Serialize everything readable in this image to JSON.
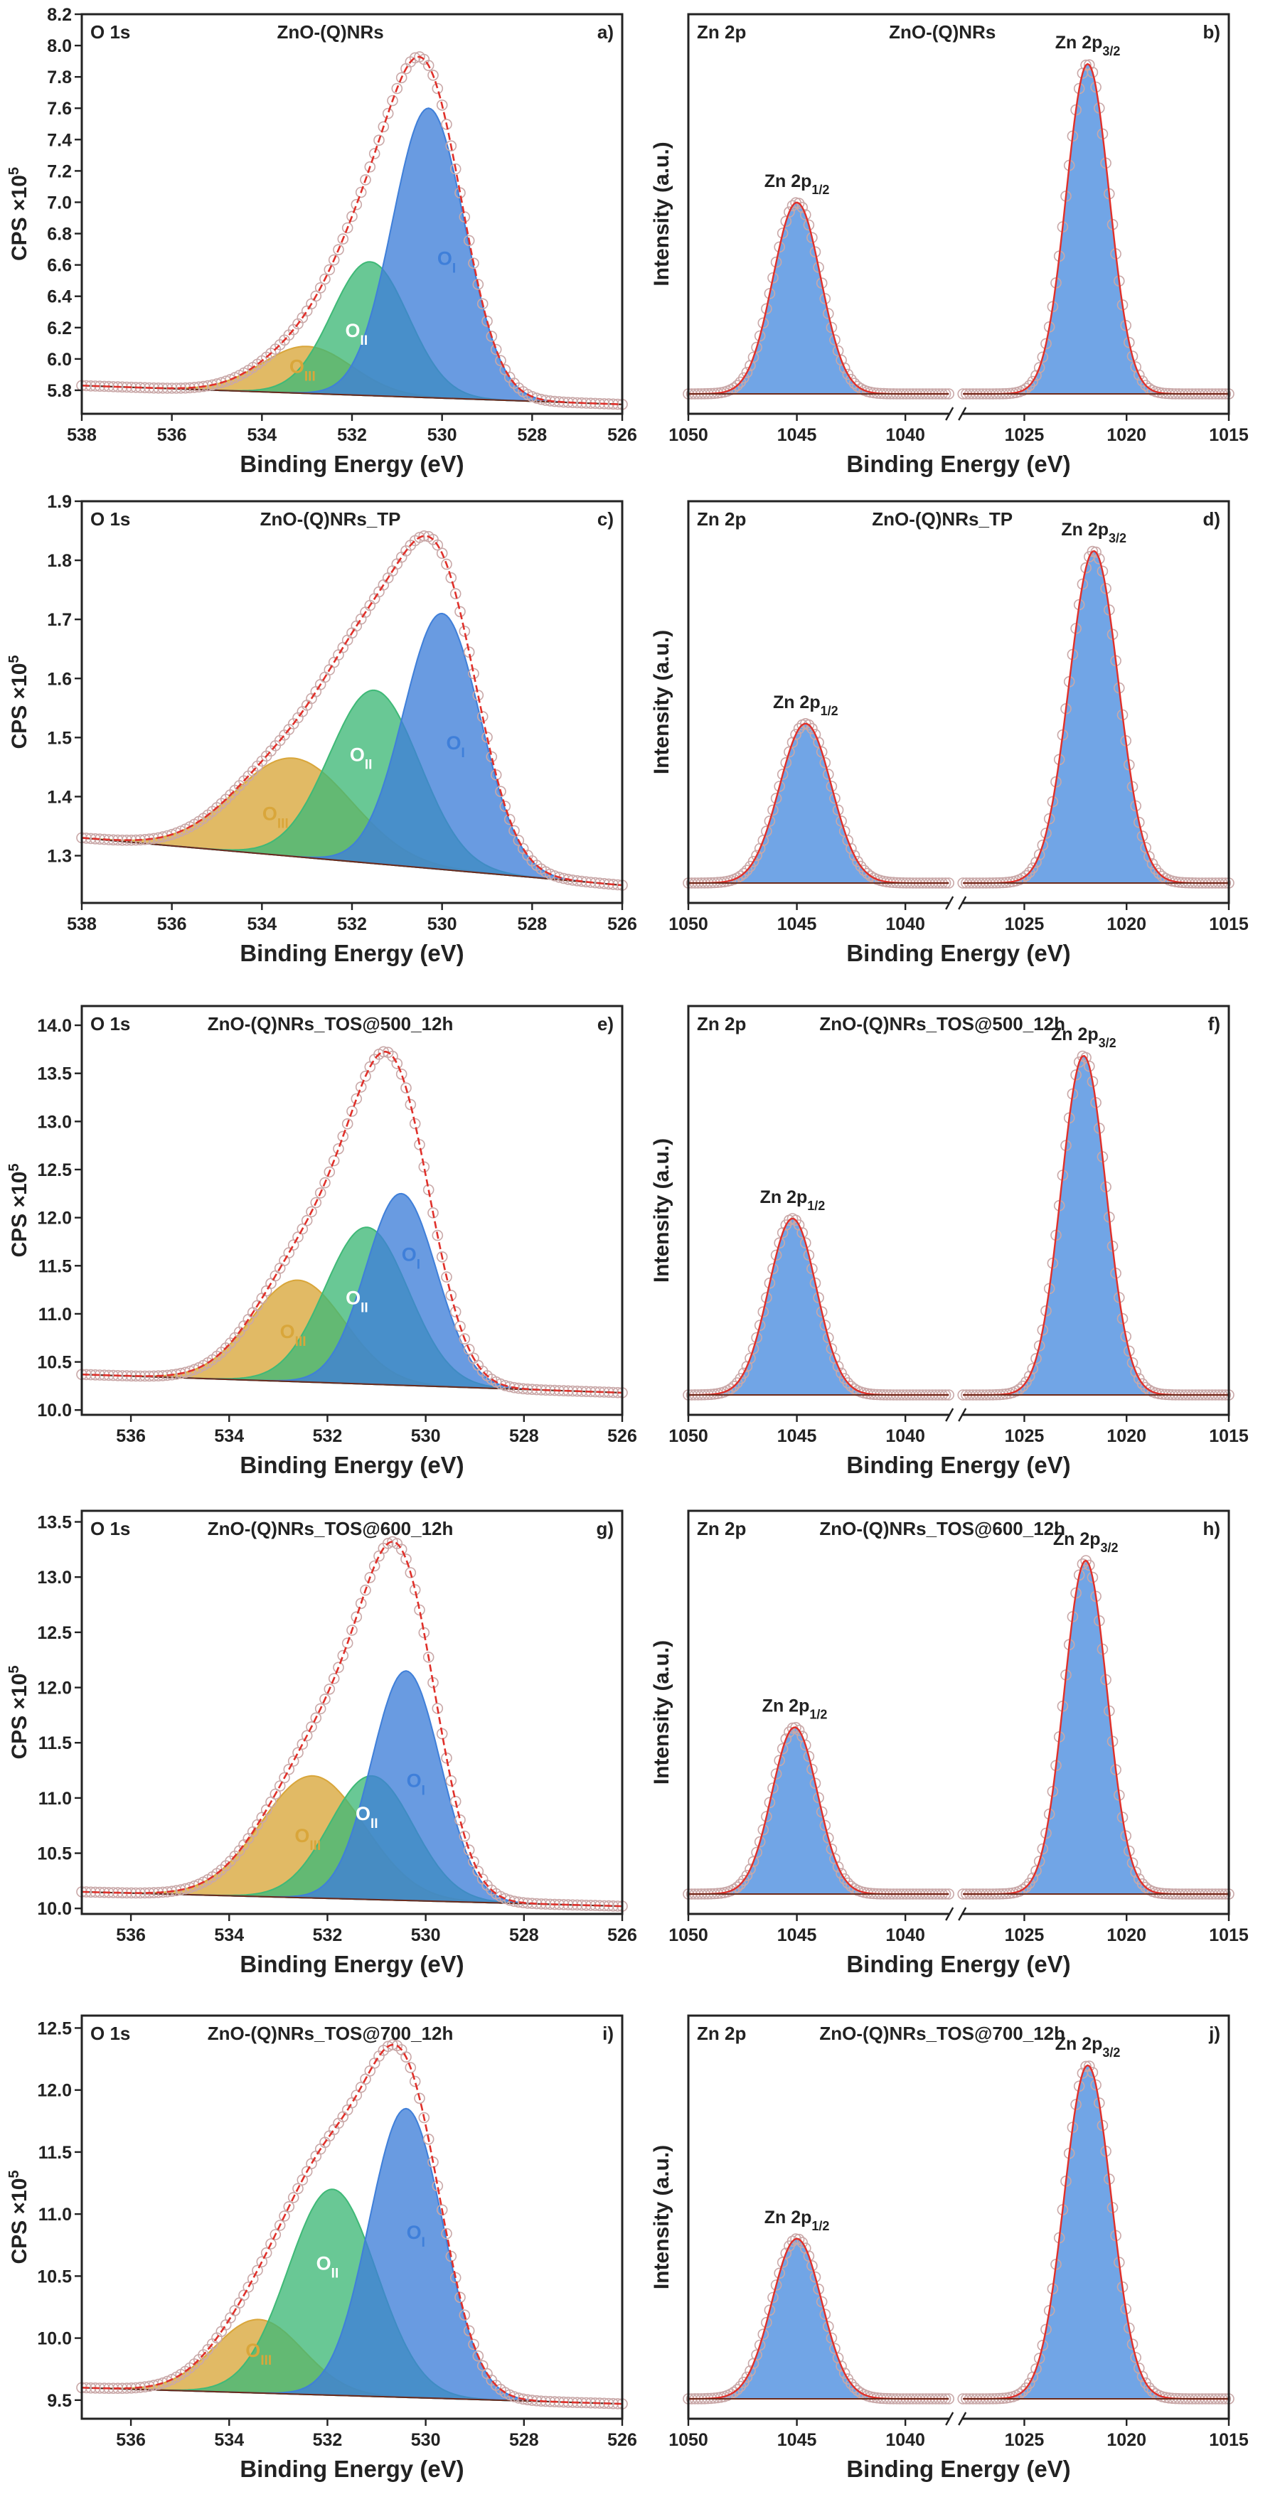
{
  "figure": {
    "colors": {
      "oI": "#3f7fd9",
      "oII": "#3fb977",
      "oIII": "#d9a63a",
      "zn": "#4d8fe0",
      "fit": "#e0302a",
      "background": "#6b2a1a",
      "markers": "#c9a8a8"
    }
  },
  "panels": [
    {
      "id": "a",
      "type": "O1s",
      "corner_label": "O 1s",
      "sample": "ZnO-(Q)NRs",
      "letter": "a)",
      "xlabel": "Binding Energy (eV)",
      "ylabel": "CPS ×10",
      "ylabel_exp": "5",
      "xlim": [
        538,
        526
      ],
      "ylim": [
        5.65,
        8.2
      ],
      "xticks": [
        538,
        536,
        534,
        532,
        530,
        528,
        526
      ],
      "xtick_labels": [
        "538",
        "536",
        "534",
        "532",
        "530",
        "528",
        "526"
      ],
      "yticks": [
        5.8,
        6.0,
        6.2,
        6.4,
        6.6,
        6.8,
        7.0,
        7.2,
        7.4,
        7.6,
        7.8,
        8.0,
        8.2
      ],
      "ytick_labels": [
        "5.8",
        "6.0",
        "6.2",
        "6.4",
        "6.6",
        "6.8",
        "7.0",
        "7.2",
        "7.4",
        "7.6",
        "7.8",
        "8.0",
        "8.2"
      ],
      "baseline": {
        "left": 5.83,
        "right": 5.71
      },
      "components": [
        {
          "name": "O_I",
          "label": "O",
          "sub": "I",
          "center": 530.3,
          "height": 7.6,
          "width": 0.8,
          "color": "oI",
          "label_at": [
            529.9,
            6.6
          ],
          "label_color": "oI"
        },
        {
          "name": "O_II",
          "label": "O",
          "sub": "II",
          "center": 531.6,
          "height": 6.62,
          "width": 0.85,
          "color": "oII",
          "label_at": [
            531.9,
            6.14
          ],
          "label_color": "#ffffff"
        },
        {
          "name": "O_III",
          "label": "O",
          "sub": "III",
          "center": 533.0,
          "height": 6.08,
          "width": 1.0,
          "color": "oIII",
          "label_at": [
            533.1,
            5.91
          ],
          "label_color": "oIII"
        }
      ]
    },
    {
      "id": "b",
      "type": "Zn2p",
      "corner_label": "Zn 2p",
      "sample": "ZnO-(Q)NRs",
      "letter": "b)",
      "xlabel": "Binding Energy (eV)",
      "ylabel": "Intensity (a.u.)",
      "xticks": [
        1050,
        1045,
        1040,
        1025,
        1020,
        1015
      ],
      "xtick_labels": [
        "1050",
        "1045",
        "1040",
        "1025",
        "1020",
        "1015"
      ],
      "left_range": [
        1050,
        1038
      ],
      "right_range": [
        1028,
        1015
      ],
      "peaks": [
        {
          "label": "Zn 2p",
          "sub": "1/2",
          "center": 1045.0,
          "rel_height": 0.58,
          "width": 1.1
        },
        {
          "label": "Zn 2p",
          "sub": "3/2",
          "center": 1021.9,
          "rel_height": 1.0,
          "width": 1.05
        }
      ]
    },
    {
      "id": "c",
      "type": "O1s",
      "corner_label": "O 1s",
      "sample": "ZnO-(Q)NRs_TP",
      "letter": "c)",
      "xlabel": "Binding Energy (eV)",
      "ylabel": "CPS ×10",
      "ylabel_exp": "5",
      "xlim": [
        538,
        526
      ],
      "ylim": [
        1.22,
        1.9
      ],
      "xticks": [
        538,
        536,
        534,
        532,
        530,
        528,
        526
      ],
      "xtick_labels": [
        "538",
        "536",
        "534",
        "532",
        "530",
        "528",
        "526"
      ],
      "yticks": [
        1.3,
        1.4,
        1.5,
        1.6,
        1.7,
        1.8,
        1.9
      ],
      "ytick_labels": [
        "1.3",
        "1.4",
        "1.5",
        "1.6",
        "1.7",
        "1.8",
        "1.9"
      ],
      "baseline": {
        "left": 1.33,
        "right": 1.25
      },
      "components": [
        {
          "name": "O_I",
          "label": "O",
          "sub": "I",
          "center": 530.0,
          "height": 1.71,
          "width": 0.85,
          "color": "oI",
          "label_at": [
            529.7,
            1.48
          ],
          "label_color": "oI"
        },
        {
          "name": "O_II",
          "label": "O",
          "sub": "II",
          "center": 531.5,
          "height": 1.58,
          "width": 1.0,
          "color": "oII",
          "label_at": [
            531.8,
            1.46
          ],
          "label_color": "#ffffff"
        },
        {
          "name": "O_III",
          "label": "O",
          "sub": "III",
          "center": 533.3,
          "height": 1.465,
          "width": 1.3,
          "color": "oIII",
          "label_at": [
            533.7,
            1.36
          ],
          "label_color": "oIII"
        }
      ]
    },
    {
      "id": "d",
      "type": "Zn2p",
      "corner_label": "Zn 2p",
      "sample": "ZnO-(Q)NRs_TP",
      "letter": "d)",
      "xlabel": "Binding Energy (eV)",
      "ylabel": "Intensity (a.u.)",
      "xticks": [
        1050,
        1045,
        1040,
        1025,
        1020,
        1015
      ],
      "xtick_labels": [
        "1050",
        "1045",
        "1040",
        "1025",
        "1020",
        "1015"
      ],
      "left_range": [
        1050,
        1038
      ],
      "right_range": [
        1028,
        1015
      ],
      "peaks": [
        {
          "label": "Zn 2p",
          "sub": "1/2",
          "center": 1044.6,
          "rel_height": 0.48,
          "width": 1.2
        },
        {
          "label": "Zn 2p",
          "sub": "3/2",
          "center": 1021.6,
          "rel_height": 1.0,
          "width": 1.2
        }
      ]
    },
    {
      "id": "e",
      "type": "O1s",
      "corner_label": "O 1s",
      "sample": "ZnO-(Q)NRs_TOS@500_12h",
      "letter": "e)",
      "xlabel": "Binding Energy (eV)",
      "ylabel": "CPS ×10",
      "ylabel_exp": "5",
      "xlim": [
        537,
        526
      ],
      "ylim": [
        9.95,
        14.2
      ],
      "xticks": [
        536,
        534,
        532,
        530,
        528,
        526
      ],
      "xtick_labels": [
        "536",
        "534",
        "532",
        "530",
        "528",
        "526"
      ],
      "yticks": [
        10.0,
        10.5,
        11.0,
        11.5,
        12.0,
        12.5,
        13.0,
        13.5,
        14.0
      ],
      "ytick_labels": [
        "10.0",
        "10.5",
        "11.0",
        "11.5",
        "12.0",
        "12.5",
        "13.0",
        "13.5",
        "14.0"
      ],
      "baseline": {
        "left": 10.37,
        "right": 10.18
      },
      "components": [
        {
          "name": "O_I",
          "label": "O",
          "sub": "I",
          "center": 530.5,
          "height": 12.25,
          "width": 0.72,
          "color": "oI",
          "label_at": [
            530.3,
            11.55
          ],
          "label_color": "oI"
        },
        {
          "name": "O_II",
          "label": "O",
          "sub": "II",
          "center": 531.2,
          "height": 11.9,
          "width": 0.85,
          "color": "oII",
          "label_at": [
            531.4,
            11.1
          ],
          "label_color": "#ffffff"
        },
        {
          "name": "O_III",
          "label": "O",
          "sub": "III",
          "center": 532.6,
          "height": 11.35,
          "width": 0.95,
          "color": "oIII",
          "label_at": [
            532.7,
            10.75
          ],
          "label_color": "oIII"
        }
      ]
    },
    {
      "id": "f",
      "type": "Zn2p",
      "corner_label": "Zn 2p",
      "sample": "ZnO-(Q)NRs_TOS@500_12h",
      "letter": "f)",
      "xlabel": "Binding Energy (eV)",
      "ylabel": "Intensity (a.u.)",
      "xticks": [
        1050,
        1045,
        1040,
        1025,
        1020,
        1015
      ],
      "xtick_labels": [
        "1050",
        "1045",
        "1040",
        "1025",
        "1020",
        "1015"
      ],
      "left_range": [
        1050,
        1038
      ],
      "right_range": [
        1028,
        1015
      ],
      "peaks": [
        {
          "label": "Zn 2p",
          "sub": "1/2",
          "center": 1045.2,
          "rel_height": 0.52,
          "width": 1.1
        },
        {
          "label": "Zn 2p",
          "sub": "3/2",
          "center": 1022.1,
          "rel_height": 1.0,
          "width": 1.1
        }
      ]
    },
    {
      "id": "g",
      "type": "O1s",
      "corner_label": "O 1s",
      "sample": "ZnO-(Q)NRs_TOS@600_12h",
      "letter": "g)",
      "xlabel": "Binding Energy (eV)",
      "ylabel": "CPS ×10",
      "ylabel_exp": "5",
      "xlim": [
        537,
        526
      ],
      "ylim": [
        9.95,
        13.6
      ],
      "xticks": [
        536,
        534,
        532,
        530,
        528,
        526
      ],
      "xtick_labels": [
        "536",
        "534",
        "532",
        "530",
        "528",
        "526"
      ],
      "yticks": [
        10.0,
        10.5,
        11.0,
        11.5,
        12.0,
        12.5,
        13.0,
        13.5
      ],
      "ytick_labels": [
        "10.0",
        "10.5",
        "11.0",
        "11.5",
        "12.0",
        "12.5",
        "13.0",
        "13.5"
      ],
      "baseline": {
        "left": 10.15,
        "right": 10.02
      },
      "components": [
        {
          "name": "O_I",
          "label": "O",
          "sub": "I",
          "center": 530.4,
          "height": 12.15,
          "width": 0.7,
          "color": "oI",
          "label_at": [
            530.2,
            11.1
          ],
          "label_color": "oI"
        },
        {
          "name": "O_II",
          "label": "O",
          "sub": "II",
          "center": 531.1,
          "height": 11.2,
          "width": 0.85,
          "color": "oII",
          "label_at": [
            531.2,
            10.8
          ],
          "label_color": "#ffffff"
        },
        {
          "name": "O_III",
          "label": "O",
          "sub": "III",
          "center": 532.3,
          "height": 11.2,
          "width": 1.05,
          "color": "oIII",
          "label_at": [
            532.4,
            10.6
          ],
          "label_color": "oIII"
        }
      ]
    },
    {
      "id": "h",
      "type": "Zn2p",
      "corner_label": "Zn 2p",
      "sample": "ZnO-(Q)NRs_TOS@600_12h",
      "letter": "h)",
      "xlabel": "Binding Energy (eV)",
      "ylabel": "Intensity (a.u.)",
      "xticks": [
        1050,
        1045,
        1040,
        1025,
        1020,
        1015
      ],
      "xtick_labels": [
        "1050",
        "1045",
        "1040",
        "1025",
        "1020",
        "1015"
      ],
      "left_range": [
        1050,
        1038
      ],
      "right_range": [
        1028,
        1015
      ],
      "peaks": [
        {
          "label": "Zn 2p",
          "sub": "1/2",
          "center": 1045.1,
          "rel_height": 0.5,
          "width": 1.05
        },
        {
          "label": "Zn 2p",
          "sub": "3/2",
          "center": 1022.0,
          "rel_height": 1.0,
          "width": 1.05
        }
      ]
    },
    {
      "id": "i",
      "type": "O1s",
      "corner_label": "O 1s",
      "sample": "ZnO-(Q)NRs_TOS@700_12h",
      "letter": "i)",
      "xlabel": "Binding Energy (eV)",
      "ylabel": "CPS ×10",
      "ylabel_exp": "5",
      "xlim": [
        537,
        526
      ],
      "ylim": [
        9.35,
        12.6
      ],
      "xticks": [
        536,
        534,
        532,
        530,
        528,
        526
      ],
      "xtick_labels": [
        "536",
        "534",
        "532",
        "530",
        "528",
        "526"
      ],
      "yticks": [
        9.5,
        10.0,
        10.5,
        11.0,
        11.5,
        12.0,
        12.5
      ],
      "ytick_labels": [
        "9.5",
        "10.0",
        "10.5",
        "11.0",
        "11.5",
        "12.0",
        "12.5"
      ],
      "baseline": {
        "left": 9.6,
        "right": 9.47
      },
      "components": [
        {
          "name": "O_I",
          "label": "O",
          "sub": "I",
          "center": 530.4,
          "height": 11.85,
          "width": 0.75,
          "color": "oI",
          "label_at": [
            530.2,
            10.8
          ],
          "label_color": "oI"
        },
        {
          "name": "O_II",
          "label": "O",
          "sub": "II",
          "center": 531.9,
          "height": 11.2,
          "width": 0.9,
          "color": "oII",
          "label_at": [
            532.0,
            10.55
          ],
          "label_color": "#ffffff"
        },
        {
          "name": "O_III",
          "label": "O",
          "sub": "III",
          "center": 533.4,
          "height": 10.15,
          "width": 0.9,
          "color": "oIII",
          "label_at": [
            533.4,
            9.85
          ],
          "label_color": "oIII"
        }
      ]
    },
    {
      "id": "j",
      "type": "Zn2p",
      "corner_label": "Zn 2p",
      "sample": "ZnO-(Q)NRs_TOS@700_12h",
      "letter": "j)",
      "xlabel": "Binding Energy (eV)",
      "ylabel": "Intensity (a.u.)",
      "xticks": [
        1050,
        1045,
        1040,
        1025,
        1020,
        1015
      ],
      "xtick_labels": [
        "1050",
        "1045",
        "1040",
        "1025",
        "1020",
        "1015"
      ],
      "left_range": [
        1050,
        1038
      ],
      "right_range": [
        1028,
        1015
      ],
      "peaks": [
        {
          "label": "Zn 2p",
          "sub": "1/2",
          "center": 1045.0,
          "rel_height": 0.48,
          "width": 1.15
        },
        {
          "label": "Zn 2p",
          "sub": "3/2",
          "center": 1021.9,
          "rel_height": 1.0,
          "width": 1.15
        }
      ]
    }
  ],
  "chart_data": [
    {
      "panel": "a",
      "type": "line",
      "title": "ZnO-(Q)NRs – O 1s",
      "xlabel": "Binding Energy (eV)",
      "ylabel": "CPS ×10^5",
      "xlim": [
        538,
        526
      ],
      "ylim": [
        5.65,
        8.2
      ],
      "series": [
        {
          "name": "O_I",
          "peak_x": 530.3,
          "peak_y": 7.6
        },
        {
          "name": "O_II",
          "peak_x": 531.6,
          "peak_y": 6.62
        },
        {
          "name": "O_III",
          "peak_x": 533.0,
          "peak_y": 6.08
        },
        {
          "name": "envelope max",
          "peak_x": 530.5,
          "peak_y": 7.88
        }
      ]
    },
    {
      "panel": "b",
      "type": "line",
      "title": "ZnO-(Q)NRs – Zn 2p",
      "xlabel": "Binding Energy (eV)",
      "ylabel": "Intensity (a.u.)",
      "series": [
        {
          "name": "Zn 2p1/2",
          "peak_x": 1045.0,
          "relative_intensity": 0.58
        },
        {
          "name": "Zn 2p3/2",
          "peak_x": 1021.9,
          "relative_intensity": 1.0
        }
      ]
    },
    {
      "panel": "c",
      "type": "line",
      "title": "ZnO-(Q)NRs_TP – O 1s",
      "xlabel": "Binding Energy (eV)",
      "ylabel": "CPS ×10^5",
      "xlim": [
        538,
        526
      ],
      "ylim": [
        1.22,
        1.9
      ],
      "series": [
        {
          "name": "O_I",
          "peak_x": 530.0,
          "peak_y": 1.71
        },
        {
          "name": "O_II",
          "peak_x": 531.5,
          "peak_y": 1.58
        },
        {
          "name": "O_III",
          "peak_x": 533.3,
          "peak_y": 1.465
        }
      ]
    },
    {
      "panel": "d",
      "type": "line",
      "title": "ZnO-(Q)NRs_TP – Zn 2p",
      "xlabel": "Binding Energy (eV)",
      "ylabel": "Intensity (a.u.)",
      "series": [
        {
          "name": "Zn 2p1/2",
          "peak_x": 1044.6,
          "relative_intensity": 0.48
        },
        {
          "name": "Zn 2p3/2",
          "peak_x": 1021.6,
          "relative_intensity": 1.0
        }
      ]
    },
    {
      "panel": "e",
      "type": "line",
      "title": "ZnO-(Q)NRs_TOS@500_12h – O 1s",
      "xlabel": "Binding Energy (eV)",
      "ylabel": "CPS ×10^5",
      "xlim": [
        537,
        526
      ],
      "ylim": [
        9.95,
        14.2
      ],
      "series": [
        {
          "name": "O_I",
          "peak_x": 530.5,
          "peak_y": 12.25
        },
        {
          "name": "O_II",
          "peak_x": 531.2,
          "peak_y": 11.9
        },
        {
          "name": "O_III",
          "peak_x": 532.6,
          "peak_y": 11.35
        }
      ]
    },
    {
      "panel": "f",
      "type": "line",
      "title": "ZnO-(Q)NRs_TOS@500_12h – Zn 2p",
      "xlabel": "Binding Energy (eV)",
      "ylabel": "Intensity (a.u.)",
      "series": [
        {
          "name": "Zn 2p1/2",
          "peak_x": 1045.2,
          "relative_intensity": 0.52
        },
        {
          "name": "Zn 2p3/2",
          "peak_x": 1022.1,
          "relative_intensity": 1.0
        }
      ]
    },
    {
      "panel": "g",
      "type": "line",
      "title": "ZnO-(Q)NRs_TOS@600_12h – O 1s",
      "xlabel": "Binding Energy (eV)",
      "ylabel": "CPS ×10^5",
      "xlim": [
        537,
        526
      ],
      "ylim": [
        9.95,
        13.6
      ],
      "series": [
        {
          "name": "O_I",
          "peak_x": 530.4,
          "peak_y": 12.15
        },
        {
          "name": "O_II",
          "peak_x": 531.1,
          "peak_y": 11.2
        },
        {
          "name": "O_III",
          "peak_x": 532.3,
          "peak_y": 11.2
        }
      ]
    },
    {
      "panel": "h",
      "type": "line",
      "title": "ZnO-(Q)NRs_TOS@600_12h – Zn 2p",
      "xlabel": "Binding Energy (eV)",
      "ylabel": "Intensity (a.u.)",
      "series": [
        {
          "name": "Zn 2p1/2",
          "peak_x": 1045.1,
          "relative_intensity": 0.5
        },
        {
          "name": "Zn 2p3/2",
          "peak_x": 1022.0,
          "relative_intensity": 1.0
        }
      ]
    },
    {
      "panel": "i",
      "type": "line",
      "title": "ZnO-(Q)NRs_TOS@700_12h – O 1s",
      "xlabel": "Binding Energy (eV)",
      "ylabel": "CPS ×10^5",
      "xlim": [
        537,
        526
      ],
      "ylim": [
        9.35,
        12.6
      ],
      "series": [
        {
          "name": "O_I",
          "peak_x": 530.4,
          "peak_y": 11.85
        },
        {
          "name": "O_II",
          "peak_x": 531.9,
          "peak_y": 11.2
        },
        {
          "name": "O_III",
          "peak_x": 533.4,
          "peak_y": 10.15
        }
      ]
    },
    {
      "panel": "j",
      "type": "line",
      "title": "ZnO-(Q)NRs_TOS@700_12h – Zn 2p",
      "xlabel": "Binding Energy (eV)",
      "ylabel": "Intensity (a.u.)",
      "series": [
        {
          "name": "Zn 2p1/2",
          "peak_x": 1045.0,
          "relative_intensity": 0.48
        },
        {
          "name": "Zn 2p3/2",
          "peak_x": 1021.9,
          "relative_intensity": 1.0
        }
      ]
    }
  ]
}
